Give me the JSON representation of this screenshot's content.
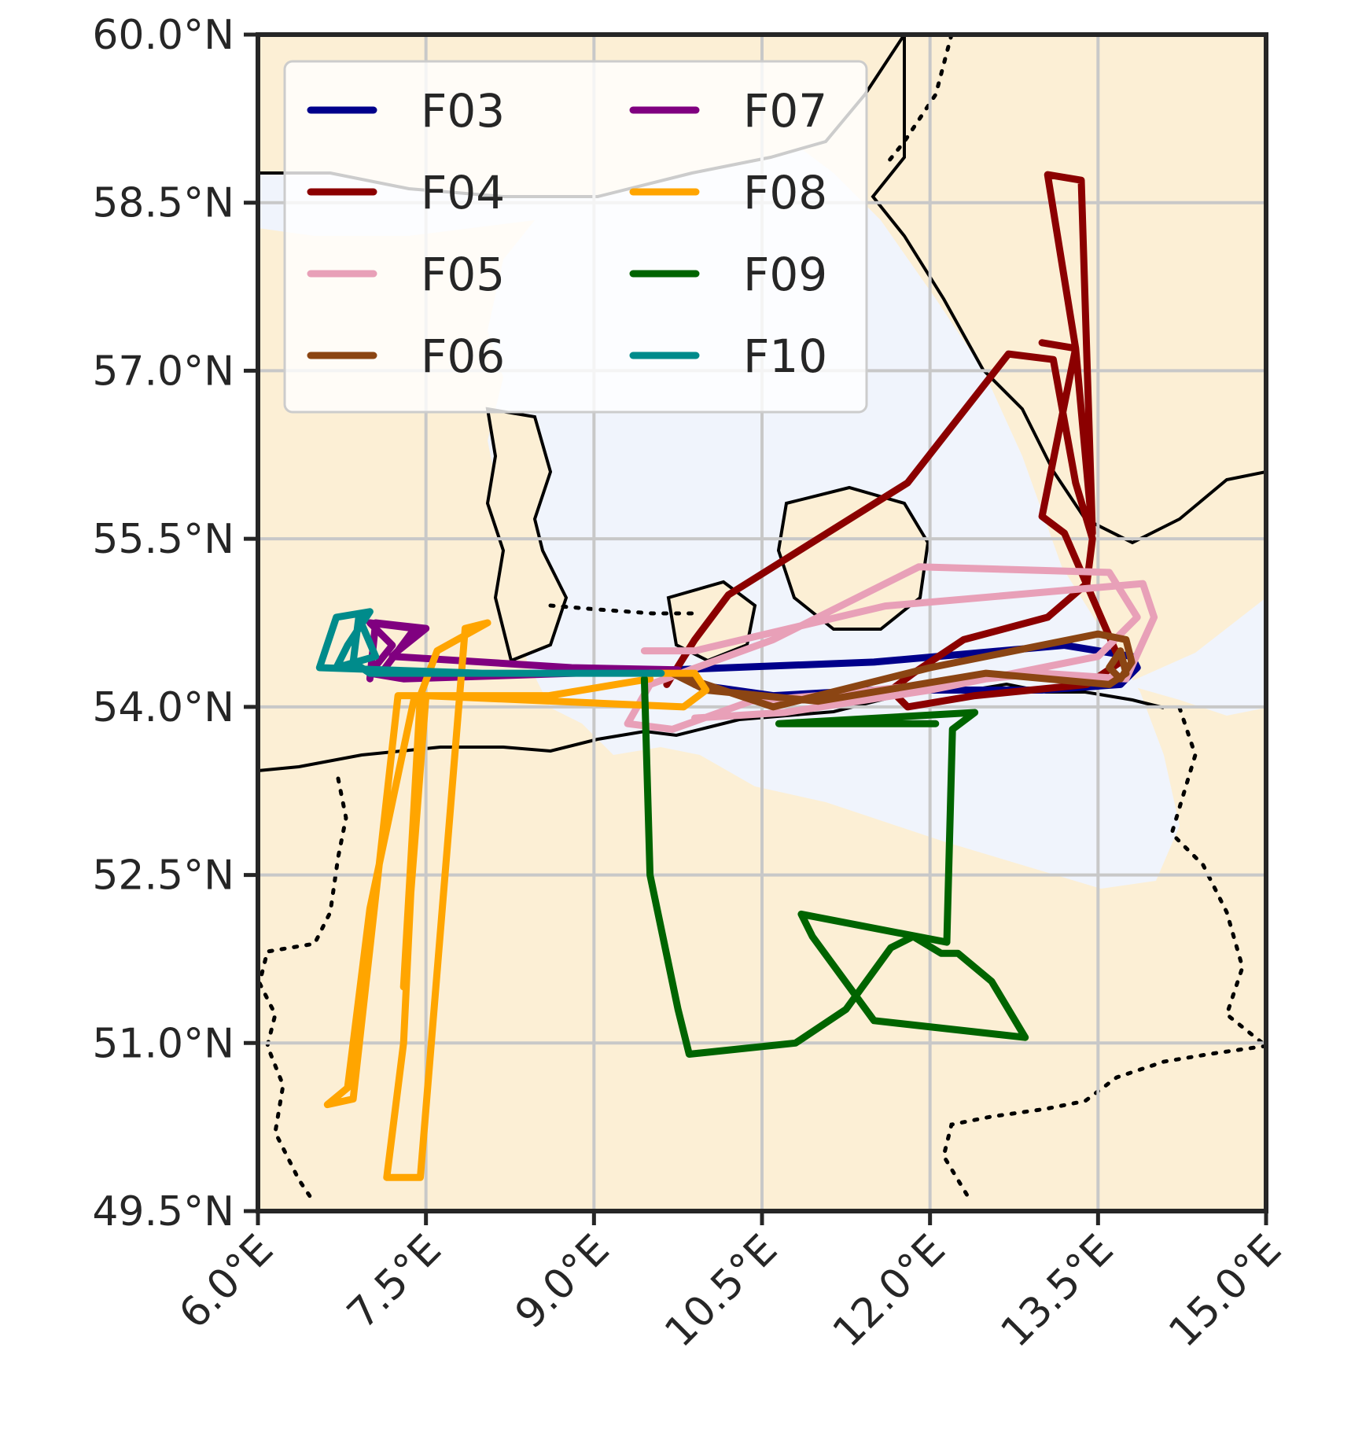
{
  "map": {
    "colors": {
      "land": "#fcefd5",
      "sea": "#f0f4fc",
      "coastline": "#000000",
      "border": "#000000",
      "grid": "#c8c8c8",
      "frame": "#262626"
    },
    "extent": {
      "lon": [
        6.0,
        15.0
      ],
      "lat": [
        49.5,
        60.0
      ]
    },
    "x_ticks": [
      {
        "value": 6.0,
        "label": "6.0°E"
      },
      {
        "value": 7.5,
        "label": "7.5°E"
      },
      {
        "value": 9.0,
        "label": "9.0°E"
      },
      {
        "value": 10.5,
        "label": "10.5°E"
      },
      {
        "value": 12.0,
        "label": "12.0°E"
      },
      {
        "value": 13.5,
        "label": "13.5°E"
      },
      {
        "value": 15.0,
        "label": "15.0°E"
      }
    ],
    "y_ticks": [
      {
        "value": 60.0,
        "label": "60.0°N"
      },
      {
        "value": 58.5,
        "label": "58.5°N"
      },
      {
        "value": 57.0,
        "label": "57.0°N"
      },
      {
        "value": 55.5,
        "label": "55.5°N"
      },
      {
        "value": 54.0,
        "label": "54.0°N"
      },
      {
        "value": 52.5,
        "label": "52.5°N"
      },
      {
        "value": 51.0,
        "label": "51.0°N"
      },
      {
        "value": 49.5,
        "label": "49.5°N"
      }
    ],
    "grid": true,
    "legend": {
      "placement": "top-left",
      "columns": 2
    }
  },
  "flights": [
    {
      "name": "F03",
      "color": "#00008b",
      "track": [
        [
          9.7,
          54.33
        ],
        [
          11.5,
          54.4
        ],
        [
          13.2,
          54.55
        ],
        [
          13.8,
          54.45
        ],
        [
          13.85,
          54.35
        ],
        [
          13.7,
          54.2
        ],
        [
          13.0,
          54.15
        ],
        [
          11.5,
          54.15
        ],
        [
          10.6,
          54.1
        ],
        [
          9.9,
          54.2
        ],
        [
          9.7,
          54.33
        ]
      ]
    },
    {
      "name": "F04",
      "color": "#8b0000",
      "track": [
        [
          9.65,
          54.2
        ],
        [
          9.9,
          54.6
        ],
        [
          10.2,
          55.0
        ],
        [
          11.8,
          56.0
        ],
        [
          12.7,
          57.15
        ],
        [
          13.1,
          57.1
        ],
        [
          13.3,
          56.0
        ],
        [
          13.45,
          55.5
        ],
        [
          13.4,
          55.1
        ],
        [
          13.05,
          54.8
        ],
        [
          12.3,
          54.6
        ],
        [
          11.85,
          54.3
        ],
        [
          11.65,
          54.15
        ],
        [
          11.8,
          54.0
        ],
        [
          12.4,
          54.1
        ],
        [
          13.4,
          54.2
        ],
        [
          13.7,
          54.4
        ],
        [
          13.2,
          55.55
        ],
        [
          13.0,
          55.7
        ],
        [
          13.3,
          57.2
        ],
        [
          13.05,
          58.75
        ],
        [
          13.35,
          58.7
        ],
        [
          13.45,
          55.55
        ],
        [
          13.3,
          57.2
        ],
        [
          13.0,
          57.25
        ]
      ]
    },
    {
      "name": "F05",
      "color": "#e8a0b8",
      "track": [
        [
          9.45,
          54.5
        ],
        [
          9.9,
          54.5
        ],
        [
          11.6,
          54.9
        ],
        [
          13.9,
          55.1
        ],
        [
          14.0,
          54.8
        ],
        [
          13.75,
          54.25
        ],
        [
          13.0,
          54.3
        ],
        [
          12.0,
          54.2
        ],
        [
          11.0,
          54.1
        ],
        [
          10.4,
          54.05
        ],
        [
          9.7,
          53.8
        ],
        [
          9.3,
          53.85
        ],
        [
          9.5,
          54.2
        ],
        [
          10.6,
          54.6
        ],
        [
          11.9,
          55.25
        ],
        [
          13.6,
          55.2
        ],
        [
          13.85,
          54.8
        ],
        [
          13.5,
          54.45
        ],
        [
          12.0,
          54.15
        ],
        [
          10.7,
          53.95
        ],
        [
          9.9,
          53.9
        ]
      ]
    },
    {
      "name": "F06",
      "color": "#8b4513",
      "track": [
        [
          9.7,
          54.3
        ],
        [
          10.6,
          54.0
        ],
        [
          12.0,
          54.35
        ],
        [
          13.5,
          54.65
        ],
        [
          13.75,
          54.6
        ],
        [
          13.8,
          54.4
        ],
        [
          13.7,
          54.25
        ],
        [
          13.6,
          54.35
        ],
        [
          13.7,
          54.5
        ],
        [
          13.75,
          54.3
        ],
        [
          13.6,
          54.2
        ],
        [
          12.5,
          54.3
        ],
        [
          11.0,
          54.05
        ],
        [
          10.0,
          54.15
        ],
        [
          9.7,
          54.3
        ]
      ]
    },
    {
      "name": "F07",
      "color": "#800080",
      "track": [
        [
          7.0,
          54.25
        ],
        [
          7.05,
          54.75
        ],
        [
          7.5,
          54.7
        ],
        [
          7.25,
          54.5
        ],
        [
          7.2,
          54.45
        ],
        [
          8.8,
          54.35
        ],
        [
          9.75,
          54.33
        ],
        [
          7.3,
          54.25
        ],
        [
          7.0,
          54.3
        ],
        [
          7.2,
          54.55
        ],
        [
          7.0,
          54.75
        ],
        [
          7.4,
          54.7
        ],
        [
          7.1,
          54.3
        ]
      ]
    },
    {
      "name": "F08",
      "color": "#ffa500",
      "track": [
        [
          9.5,
          54.25
        ],
        [
          8.6,
          54.1
        ],
        [
          8.0,
          54.1
        ],
        [
          7.4,
          54.1
        ],
        [
          7.0,
          52.2
        ],
        [
          6.8,
          50.6
        ],
        [
          6.62,
          50.45
        ],
        [
          6.85,
          50.5
        ],
        [
          7.25,
          54.1
        ],
        [
          7.45,
          54.1
        ],
        [
          7.3,
          51.0
        ],
        [
          7.15,
          49.8
        ],
        [
          7.45,
          49.8
        ],
        [
          7.85,
          54.7
        ],
        [
          8.05,
          54.75
        ],
        [
          7.6,
          54.5
        ],
        [
          7.45,
          54.1
        ],
        [
          7.3,
          51.5
        ],
        [
          7.5,
          54.1
        ],
        [
          9.8,
          54.0
        ],
        [
          10.0,
          54.15
        ],
        [
          9.9,
          54.3
        ],
        [
          9.5,
          54.3
        ]
      ]
    },
    {
      "name": "F09",
      "color": "#006400",
      "track": [
        [
          9.45,
          54.25
        ],
        [
          9.5,
          52.5
        ],
        [
          9.75,
          51.3
        ],
        [
          9.85,
          50.9
        ],
        [
          10.8,
          51.0
        ],
        [
          11.25,
          51.3
        ],
        [
          11.65,
          51.85
        ],
        [
          11.85,
          51.95
        ],
        [
          12.1,
          51.8
        ],
        [
          12.25,
          51.8
        ],
        [
          12.55,
          51.55
        ],
        [
          12.85,
          51.05
        ],
        [
          11.5,
          51.2
        ],
        [
          10.95,
          51.95
        ],
        [
          10.85,
          52.15
        ],
        [
          12.15,
          51.9
        ],
        [
          12.2,
          53.8
        ],
        [
          12.4,
          53.95
        ],
        [
          10.65,
          53.85
        ],
        [
          12.05,
          53.85
        ]
      ]
    },
    {
      "name": "F10",
      "color": "#008b8b",
      "track": [
        [
          9.6,
          54.3
        ],
        [
          8.0,
          54.3
        ],
        [
          6.55,
          54.35
        ],
        [
          6.7,
          54.8
        ],
        [
          7.0,
          54.85
        ],
        [
          6.8,
          54.55
        ],
        [
          6.7,
          54.35
        ],
        [
          7.05,
          54.45
        ],
        [
          6.9,
          54.8
        ],
        [
          6.85,
          54.4
        ],
        [
          7.0,
          54.3
        ],
        [
          9.6,
          54.3
        ]
      ]
    }
  ]
}
